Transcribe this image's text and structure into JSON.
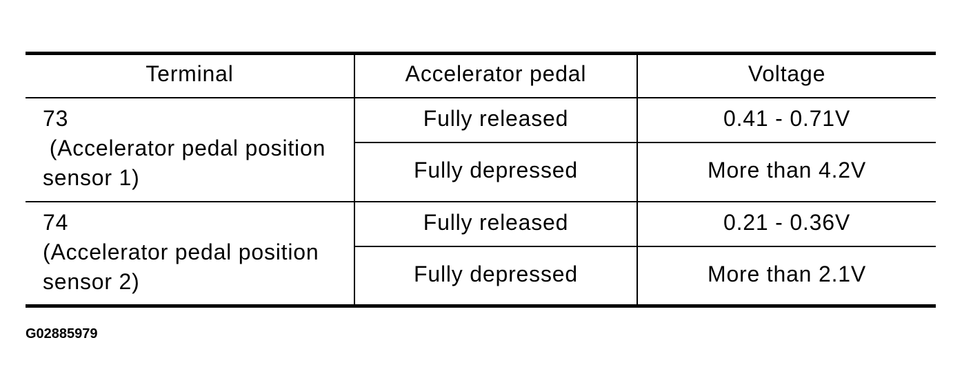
{
  "table": {
    "headers": [
      "Terminal",
      "Accelerator pedal",
      "Voltage"
    ],
    "rows": [
      {
        "terminal_lines": [
          "73",
          " (Accelerator pedal position",
          "sensor 1)"
        ],
        "states": [
          {
            "pedal": "Fully released",
            "voltage": "0.41 - 0.71V"
          },
          {
            "pedal": "Fully depressed",
            "voltage": "More than 4.2V"
          }
        ]
      },
      {
        "terminal_lines": [
          "74",
          "(Accelerator pedal position",
          "sensor 2)"
        ],
        "states": [
          {
            "pedal": "Fully released",
            "voltage": "0.21 - 0.36V"
          },
          {
            "pedal": "Fully depressed",
            "voltage": "More than 2.1V"
          }
        ]
      }
    ]
  },
  "figure_id": "G02885979"
}
